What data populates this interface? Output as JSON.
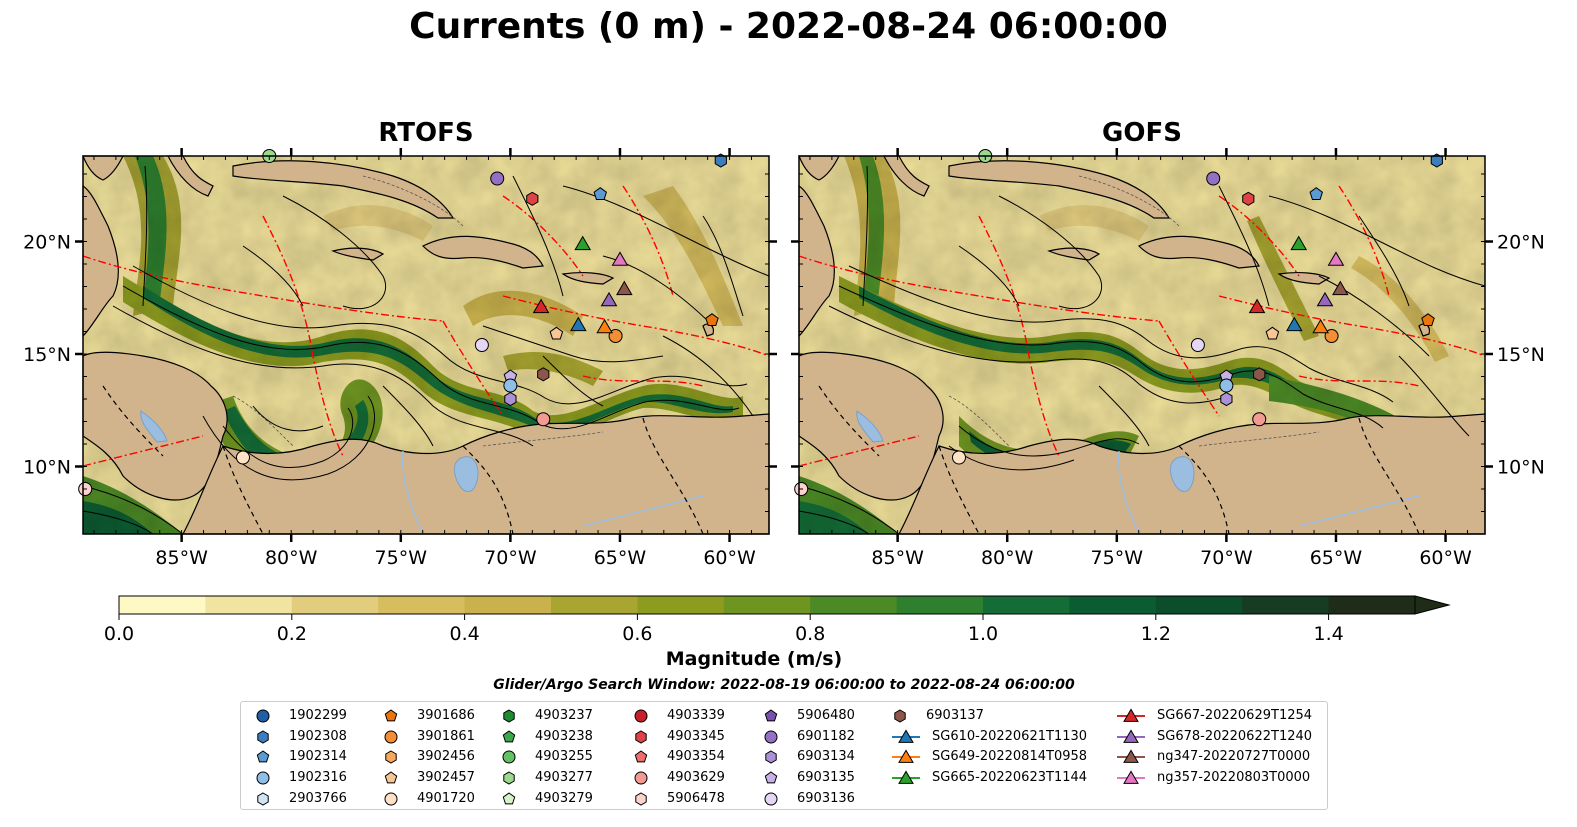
{
  "title": "Currents (0 m) - 2022-08-24 06:00:00",
  "panels": [
    {
      "title": "RTOFS"
    },
    {
      "title": "GOFS"
    }
  ],
  "map": {
    "lon_range": [
      -89.5,
      -58.2
    ],
    "lat_range": [
      7.0,
      23.8
    ],
    "lon_ticks": [
      "85°W",
      "80°W",
      "75°W",
      "70°W",
      "65°W",
      "60°W"
    ],
    "lat_ticks": [
      "20°N",
      "15°N",
      "10°N"
    ],
    "land_color": "#d2b48c",
    "eez_color": "#ff0000",
    "border_style": "dashed"
  },
  "colorbar": {
    "label": "Magnitude (m/s)",
    "ticks": [
      "0.0",
      "0.2",
      "0.4",
      "0.6",
      "0.8",
      "1.0",
      "1.2",
      "1.4"
    ],
    "range": [
      0,
      1.5
    ],
    "extend": "max",
    "colors": [
      "#fdf8c4",
      "#f1e3a2",
      "#e2cc7e",
      "#d6bd5e",
      "#c9b24c",
      "#a8a530",
      "#8d9c1f",
      "#6f9521",
      "#4c8a25",
      "#2e7f2e",
      "#146c36",
      "#0c5c32",
      "#0c4d2b",
      "#163c23",
      "#1e2c18"
    ]
  },
  "search_window": "Glider/Argo Search Window: 2022-08-19 06:00:00 to 2022-08-24 06:00:00",
  "legend": {
    "columns": [
      [
        {
          "label": "1902299",
          "marker": "circle",
          "color": "#1f5fa8"
        },
        {
          "label": "1902308",
          "marker": "hexagon",
          "color": "#3a7ec0"
        },
        {
          "label": "1902314",
          "marker": "pentagon",
          "color": "#5a9bd3"
        },
        {
          "label": "1902316",
          "marker": "circle",
          "color": "#8fbfe6"
        },
        {
          "label": "2903766",
          "marker": "hexagon",
          "color": "#cfe4f5"
        }
      ],
      [
        {
          "label": "3901686",
          "marker": "pentagon",
          "color": "#e8750e"
        },
        {
          "label": "3901861",
          "marker": "circle",
          "color": "#f28e34"
        },
        {
          "label": "3902456",
          "marker": "hexagon",
          "color": "#f6a85c"
        },
        {
          "label": "3902457",
          "marker": "pentagon",
          "color": "#f9c592"
        },
        {
          "label": "4901720",
          "marker": "circle",
          "color": "#fde2c5"
        }
      ],
      [
        {
          "label": "4903237",
          "marker": "hexagon",
          "color": "#1e8a32"
        },
        {
          "label": "4903238",
          "marker": "pentagon",
          "color": "#3aa84a"
        },
        {
          "label": "4903255",
          "marker": "circle",
          "color": "#63c163"
        },
        {
          "label": "4903277",
          "marker": "hexagon",
          "color": "#9bd98c"
        },
        {
          "label": "4903279",
          "marker": "pentagon",
          "color": "#d6f2c8"
        }
      ],
      [
        {
          "label": "4903339",
          "marker": "circle",
          "color": "#c8202a"
        },
        {
          "label": "4903345",
          "marker": "hexagon",
          "color": "#de4447"
        },
        {
          "label": "4903354",
          "marker": "pentagon",
          "color": "#ee6e6c"
        },
        {
          "label": "4903629",
          "marker": "circle",
          "color": "#f49a95"
        },
        {
          "label": "5906478",
          "marker": "hexagon",
          "color": "#fbd2cc"
        }
      ],
      [
        {
          "label": "5906480",
          "marker": "pentagon",
          "color": "#7b4fae"
        },
        {
          "label": "6901182",
          "marker": "circle",
          "color": "#9370c4"
        },
        {
          "label": "6903134",
          "marker": "hexagon",
          "color": "#ab91d6"
        },
        {
          "label": "6903135",
          "marker": "pentagon",
          "color": "#c6b2e6"
        },
        {
          "label": "6903136",
          "marker": "circle",
          "color": "#e4d6f4"
        }
      ],
      [
        {
          "label": "6903137",
          "marker": "hexagon",
          "color": "#8c564b"
        },
        {
          "label": "SG610-20220621T1130",
          "marker": "triangle-line",
          "color": "#1f77b4"
        },
        {
          "label": "SG649-20220814T0958",
          "marker": "triangle-line",
          "color": "#ff7f0e"
        },
        {
          "label": "SG665-20220623T1144",
          "marker": "triangle-line",
          "color": "#2ca02c"
        }
      ],
      [
        {
          "label": "SG667-20220629T1254",
          "marker": "triangle-line",
          "color": "#d62728"
        },
        {
          "label": "SG678-20220622T1240",
          "marker": "triangle-line",
          "color": "#9467bd"
        },
        {
          "label": "ng347-20220727T0000",
          "marker": "triangle-line",
          "color": "#8c564b"
        },
        {
          "label": "ng357-20220803T0000",
          "marker": "triangle-line",
          "color": "#e377c2"
        }
      ]
    ]
  },
  "observations": [
    {
      "lon": -89.4,
      "lat": 9.0,
      "marker": "circle",
      "color": "#fbd2cc"
    },
    {
      "lon": -82.2,
      "lat": 10.4,
      "marker": "circle",
      "color": "#fde2c5"
    },
    {
      "lon": -81.0,
      "lat": 23.8,
      "marker": "circle",
      "color": "#9bd98c"
    },
    {
      "lon": -71.3,
      "lat": 15.4,
      "marker": "circle",
      "color": "#e4d6f4"
    },
    {
      "lon": -70.6,
      "lat": 22.8,
      "marker": "circle",
      "color": "#9370c4"
    },
    {
      "lon": -69.0,
      "lat": 21.9,
      "marker": "hexagon",
      "color": "#de4447"
    },
    {
      "lon": -70.0,
      "lat": 14.0,
      "marker": "pentagon",
      "color": "#c6b2e6"
    },
    {
      "lon": -70.0,
      "lat": 13.6,
      "marker": "circle",
      "color": "#8fbfe6"
    },
    {
      "lon": -70.0,
      "lat": 13.0,
      "marker": "hexagon",
      "color": "#ab91d6"
    },
    {
      "lon": -68.5,
      "lat": 14.1,
      "marker": "hexagon",
      "color": "#8c564b"
    },
    {
      "lon": -68.5,
      "lat": 12.1,
      "marker": "circle",
      "color": "#f49a95"
    },
    {
      "lon": -65.9,
      "lat": 22.1,
      "marker": "pentagon",
      "color": "#5a9bd3"
    },
    {
      "lon": -60.4,
      "lat": 23.6,
      "marker": "hexagon",
      "color": "#3a7ec0"
    },
    {
      "lon": -60.8,
      "lat": 16.5,
      "marker": "pentagon",
      "color": "#e8750e"
    },
    {
      "lon": -67.9,
      "lat": 15.9,
      "marker": "pentagon",
      "color": "#f9c592"
    },
    {
      "lon": -65.2,
      "lat": 15.8,
      "marker": "circle",
      "color": "#f28e34"
    }
  ],
  "gliders": [
    {
      "lon": -66.9,
      "lat": 16.3,
      "color": "#1f77b4"
    },
    {
      "lon": -65.7,
      "lat": 16.2,
      "color": "#ff7f0e"
    },
    {
      "lon": -66.7,
      "lat": 19.9,
      "color": "#2ca02c"
    },
    {
      "lon": -68.6,
      "lat": 17.1,
      "color": "#d62728"
    },
    {
      "lon": -65.5,
      "lat": 17.4,
      "color": "#9467bd"
    },
    {
      "lon": -64.8,
      "lat": 17.9,
      "color": "#8c564b"
    },
    {
      "lon": -65.0,
      "lat": 19.2,
      "color": "#e377c2"
    }
  ]
}
